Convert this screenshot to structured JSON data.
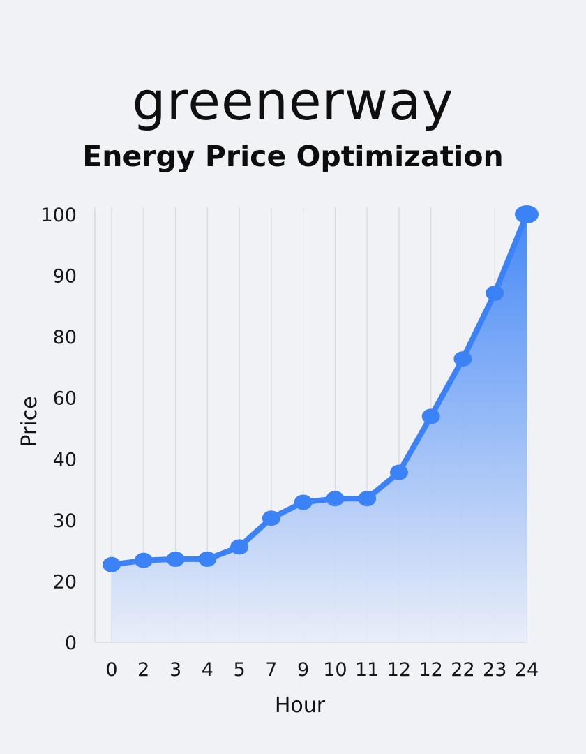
{
  "brand": {
    "logo_text": "greenerway"
  },
  "header": {
    "title": "Energy Price Optimization"
  },
  "chart_data": {
    "type": "area",
    "title": "Energy Price Optimization",
    "xlabel": "Hour",
    "ylabel": "Price",
    "categories": [
      "0",
      "2",
      "3",
      "4",
      "5",
      "7",
      "9",
      "10",
      "11",
      "12",
      "12",
      "22",
      "23",
      "24"
    ],
    "values": [
      22.7,
      23.4,
      23.6,
      23.6,
      25.6,
      30.3,
      32.9,
      33.5,
      33.5,
      37.8,
      53.9,
      72.7,
      87.1,
      100
    ],
    "y_ticks": [
      0,
      20,
      30,
      40,
      60,
      80,
      90,
      100
    ],
    "ylim": [
      0,
      100
    ],
    "grid": "vertical",
    "legend": "none",
    "colors": {
      "line": "#3b82f6",
      "fill_top": "#3b82f6",
      "fill_bottom": "#e8edf8",
      "grid": "#d8dae0"
    }
  }
}
